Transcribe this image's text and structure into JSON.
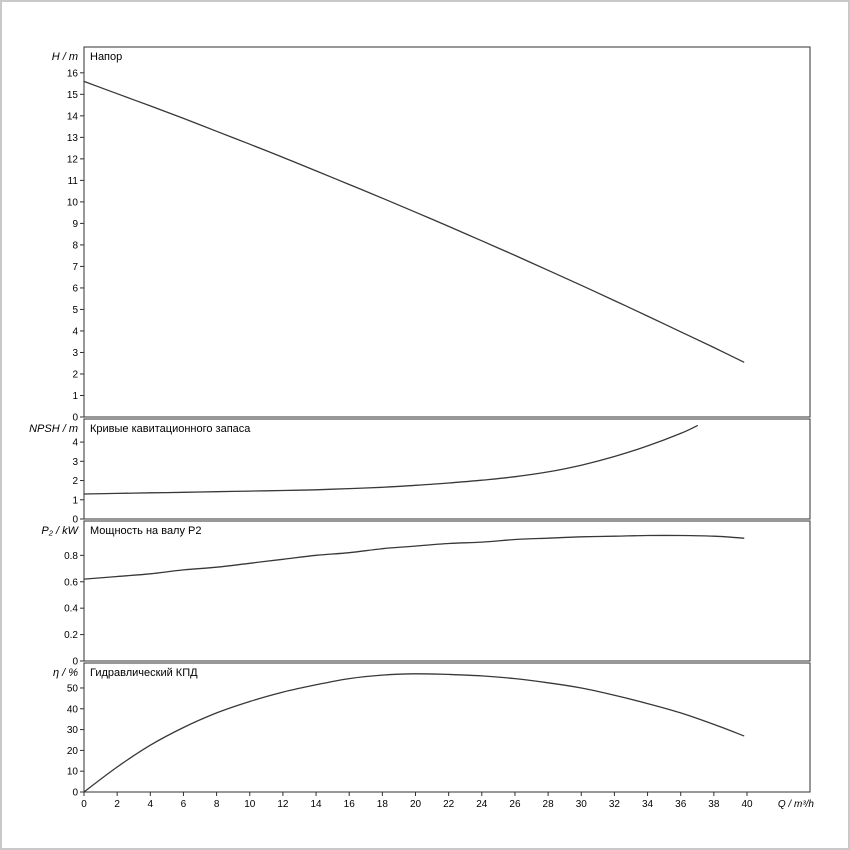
{
  "window": {
    "background": "#ffffff",
    "border_color": "#c9c9c9"
  },
  "style": {
    "axis_color": "#303030",
    "curve_color": "#383838"
  },
  "x_axis": {
    "label": "Q / m³/h",
    "ticks": [
      0,
      2,
      4,
      6,
      8,
      10,
      12,
      14,
      16,
      18,
      20,
      22,
      24,
      26,
      28,
      30,
      32,
      34,
      36,
      38,
      40
    ],
    "max": 43.8
  },
  "chart_data": [
    {
      "type": "line",
      "name": "head",
      "title": "Напор",
      "ylabel": "H / m",
      "ylim": [
        0,
        17.2
      ],
      "yticks": [
        0,
        1,
        2,
        3,
        4,
        5,
        6,
        7,
        8,
        9,
        10,
        11,
        12,
        13,
        14,
        15,
        16
      ],
      "x": [
        0,
        2,
        4,
        6,
        8,
        10,
        12,
        14,
        16,
        18,
        20,
        22,
        24,
        26,
        28,
        30,
        32,
        34,
        36,
        38,
        39.8
      ],
      "values": [
        15.6,
        15.03,
        14.46,
        13.88,
        13.28,
        12.68,
        12.07,
        11.44,
        10.81,
        10.17,
        9.52,
        8.86,
        8.19,
        7.51,
        6.82,
        6.12,
        5.41,
        4.69,
        3.96,
        3.23,
        2.55
      ]
    },
    {
      "type": "line",
      "name": "npsh",
      "title": "Кривые кавитационного запаса",
      "ylabel": "NPSH / m",
      "ylim": [
        0,
        5.2
      ],
      "yticks": [
        0,
        1,
        2,
        3,
        4
      ],
      "x": [
        0,
        2,
        4,
        6,
        8,
        10,
        12,
        14,
        16,
        18,
        20,
        22,
        24,
        26,
        28,
        30,
        32,
        34,
        36,
        37
      ],
      "values": [
        1.3,
        1.33,
        1.36,
        1.39,
        1.42,
        1.45,
        1.48,
        1.52,
        1.58,
        1.65,
        1.75,
        1.87,
        2.02,
        2.2,
        2.45,
        2.8,
        3.25,
        3.8,
        4.45,
        4.85
      ]
    },
    {
      "type": "line",
      "name": "shaft-power",
      "title": "Мощность на валу P2",
      "ylabel": "P₂ / kW",
      "ylim": [
        0,
        1.06
      ],
      "yticks": [
        0,
        0.2,
        0.4,
        0.6,
        0.8
      ],
      "x": [
        0,
        2,
        4,
        6,
        8,
        10,
        12,
        14,
        16,
        18,
        20,
        22,
        24,
        26,
        28,
        30,
        32,
        34,
        36,
        38,
        39.8
      ],
      "values": [
        0.62,
        0.64,
        0.66,
        0.69,
        0.71,
        0.74,
        0.77,
        0.8,
        0.82,
        0.85,
        0.87,
        0.89,
        0.9,
        0.92,
        0.93,
        0.94,
        0.945,
        0.95,
        0.95,
        0.945,
        0.93
      ]
    },
    {
      "type": "line",
      "name": "efficiency",
      "title": "Гидравлический КПД",
      "ylabel": "η / %",
      "ylim": [
        0,
        62
      ],
      "yticks": [
        0,
        10,
        20,
        30,
        40,
        50
      ],
      "x": [
        0,
        2,
        4,
        6,
        8,
        10,
        12,
        14,
        16,
        18,
        20,
        22,
        24,
        26,
        28,
        30,
        32,
        34,
        36,
        38,
        39.8
      ],
      "values": [
        0,
        12,
        22.5,
        31,
        38,
        43.5,
        48,
        51.5,
        54.5,
        56.2,
        56.8,
        56.5,
        55.8,
        54.5,
        52.5,
        50,
        46.5,
        42.5,
        38,
        32.5,
        27
      ]
    }
  ]
}
